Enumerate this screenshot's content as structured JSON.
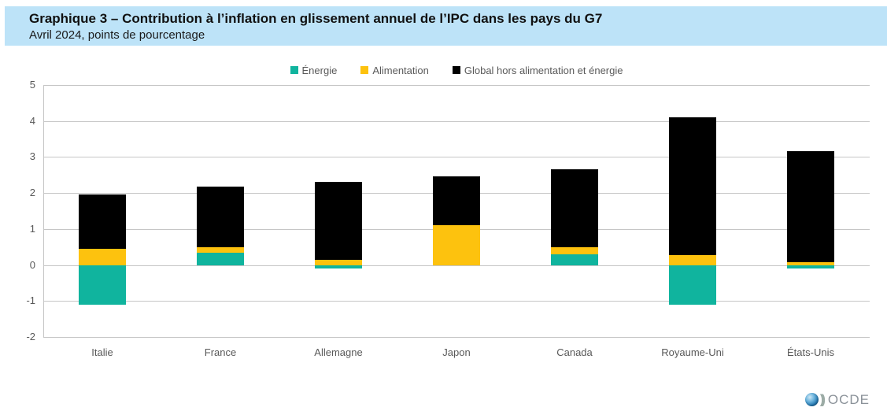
{
  "header": {
    "region_label": "chart-header"
  },
  "footer": {
    "logo_text": "OCDE",
    "logo_chevrons": "))"
  },
  "colors": {
    "header_bg": "#bde3f8",
    "grid": "#c6c6c6",
    "axis_text": "#595959",
    "logo_text": "#8b9299"
  },
  "chart_data": {
    "type": "bar",
    "stacked": true,
    "title": "Graphique 3 – Contribution à l’inflation en glissement annuel de l’IPC dans les pays du G7",
    "subtitle": "Avril 2024, points de pourcentage",
    "categories": [
      "Italie",
      "France",
      "Allemagne",
      "Japon",
      "Canada",
      "Royaume-Uni",
      "États-Unis"
    ],
    "series": [
      {
        "name": "Énergie",
        "color": "#10b49e",
        "values": [
          -1.1,
          0.33,
          -0.1,
          0,
          0.3,
          -1.1,
          -0.1
        ]
      },
      {
        "name": "Alimentation",
        "color": "#fdc20e",
        "values": [
          0.45,
          0.17,
          0.15,
          1.1,
          0.2,
          0.28,
          0.08
        ]
      },
      {
        "name": "Global hors alimentation et énergie",
        "color": "#000000",
        "values": [
          1.5,
          1.68,
          2.17,
          1.37,
          2.16,
          3.82,
          3.08
        ]
      }
    ],
    "stack_totals": [
      1.95,
      2.18,
      2.32,
      2.47,
      2.66,
      4.1,
      3.16
    ],
    "ylim": [
      -2,
      5
    ],
    "ytick_step": 1,
    "xlabel": "",
    "ylabel": "",
    "grid": true,
    "legend_position": "top"
  }
}
